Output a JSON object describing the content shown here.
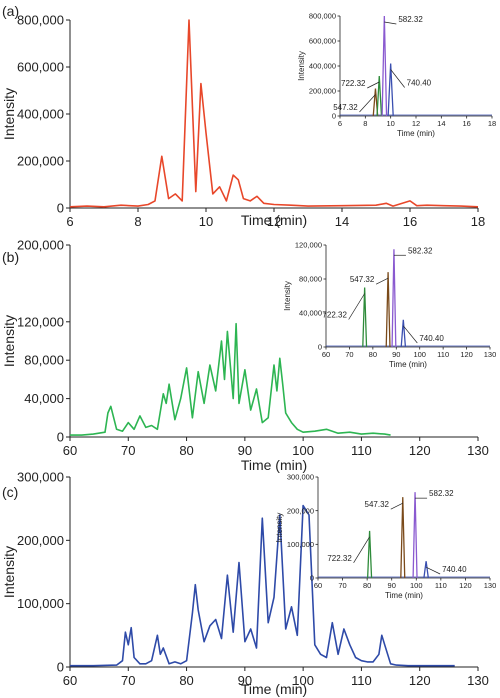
{
  "chart_data": [
    {
      "panel_label": "(a)",
      "type": "line",
      "xlabel": "Time (min)",
      "ylabel": "Intensity",
      "xlim": [
        6,
        18
      ],
      "ylim": [
        0,
        800000
      ],
      "xticks": [
        "6",
        "8",
        "10",
        "12",
        "14",
        "16",
        "18"
      ],
      "yticks": [
        "0",
        "200,000",
        "400,000",
        "600,000",
        "800,000"
      ],
      "series": [
        {
          "color": "#e8472a",
          "x": [
            6.0,
            6.5,
            7.0,
            7.5,
            8.0,
            8.3,
            8.5,
            8.7,
            8.9,
            9.1,
            9.3,
            9.5,
            9.7,
            9.85,
            10.0,
            10.2,
            10.4,
            10.6,
            10.8,
            10.95,
            11.1,
            11.3,
            11.5,
            11.7,
            12.0,
            12.5,
            13.0,
            14.0,
            15.0,
            15.3,
            15.5,
            16.0,
            16.2,
            16.5,
            17.0,
            17.5,
            18.0
          ],
          "y": [
            5000,
            8000,
            5000,
            12000,
            8000,
            15000,
            30000,
            220000,
            40000,
            60000,
            30000,
            800000,
            70000,
            530000,
            320000,
            60000,
            90000,
            30000,
            140000,
            120000,
            40000,
            30000,
            50000,
            20000,
            15000,
            12000,
            8000,
            10000,
            12000,
            20000,
            8000,
            30000,
            10000,
            12000,
            10000,
            8000,
            5000
          ]
        }
      ],
      "inset": {
        "xlabel": "Time (min)",
        "ylabel": "Intensity",
        "xlim": [
          6,
          18
        ],
        "ylim": [
          0,
          800000
        ],
        "xticks": [
          "6",
          "8",
          "10",
          "12",
          "14",
          "16",
          "18"
        ],
        "yticks": [
          "0",
          "200,000",
          "400,000",
          "600,000",
          "800,000"
        ],
        "peaks": [
          {
            "label": "547.32",
            "x": 8.8,
            "y": 220000,
            "width": 0.35,
            "color": "#7a4a1a"
          },
          {
            "label": "722.32",
            "x": 9.1,
            "y": 320000,
            "width": 0.35,
            "color": "#2e8b3a"
          },
          {
            "label": "582.32",
            "x": 9.5,
            "y": 800000,
            "width": 0.35,
            "color": "#8a5ad0"
          },
          {
            "label": "740.40",
            "x": 10.0,
            "y": 420000,
            "width": 0.4,
            "color": "#3a4fb0"
          }
        ]
      }
    },
    {
      "panel_label": "(b)",
      "type": "line",
      "xlabel": "Time (min)",
      "ylabel": "Intensity",
      "xlim": [
        60,
        130
      ],
      "ylim": [
        0,
        200000
      ],
      "xticks": [
        "60",
        "70",
        "80",
        "90",
        "100",
        "110",
        "120",
        "130"
      ],
      "yticks": [
        "0",
        "40,000",
        "80,000",
        "120,000",
        "200,000"
      ],
      "series": [
        {
          "color": "#2db552",
          "x": [
            60,
            62,
            64,
            66,
            66.5,
            67,
            67.5,
            68,
            69,
            70,
            71,
            72,
            73,
            74,
            75,
            76,
            76.5,
            77,
            78,
            79,
            80,
            81,
            82,
            83,
            84,
            85,
            86,
            86.5,
            87,
            88,
            88.5,
            89,
            90,
            91,
            92,
            93,
            94,
            95,
            95.5,
            96,
            96.5,
            97,
            98,
            99,
            100,
            102,
            104,
            106,
            108,
            110,
            112,
            114,
            115
          ],
          "y": [
            2000,
            2000,
            3000,
            5000,
            25000,
            32000,
            20000,
            8000,
            6000,
            15000,
            8000,
            22000,
            10000,
            12000,
            8000,
            45000,
            35000,
            55000,
            18000,
            40000,
            72000,
            20000,
            68000,
            35000,
            75000,
            48000,
            100000,
            60000,
            110000,
            40000,
            118000,
            35000,
            70000,
            28000,
            50000,
            15000,
            20000,
            75000,
            48000,
            82000,
            55000,
            25000,
            15000,
            8000,
            5000,
            6000,
            8000,
            4000,
            5000,
            3000,
            4000,
            3000,
            2000
          ]
        }
      ],
      "inset": {
        "xlabel": "Time (min)",
        "ylabel": "Intensity",
        "xlim": [
          60,
          130
        ],
        "ylim": [
          0,
          120000
        ],
        "xticks": [
          "60",
          "70",
          "80",
          "90",
          "100",
          "110",
          "120",
          "130"
        ],
        "yticks": [
          "0",
          "40,000",
          "80,000",
          "120,000"
        ],
        "peaks": [
          {
            "label": "722.32",
            "x": 76.5,
            "y": 70000,
            "width": 1.6,
            "color": "#2e8b3a"
          },
          {
            "label": "547.32",
            "x": 86.5,
            "y": 88000,
            "width": 1.6,
            "color": "#7a4a1a"
          },
          {
            "label": "582.32",
            "x": 89.0,
            "y": 115000,
            "width": 1.6,
            "color": "#8a5ad0"
          },
          {
            "label": "740.40",
            "x": 93.0,
            "y": 32000,
            "width": 1.8,
            "color": "#3a4fb0"
          }
        ]
      }
    },
    {
      "panel_label": "(c)",
      "type": "line",
      "xlabel": "Time (min)",
      "ylabel": "Intensity",
      "xlim": [
        60,
        130
      ],
      "ylim": [
        0,
        300000
      ],
      "xticks": [
        "60",
        "70",
        "80",
        "90",
        "100",
        "110",
        "120",
        "130"
      ],
      "yticks": [
        "0",
        "100,000",
        "200,000",
        "300,000"
      ],
      "series": [
        {
          "color": "#2e4aa8",
          "x": [
            60,
            64,
            68,
            69,
            69.5,
            70,
            70.5,
            71,
            72,
            73,
            74,
            75,
            75.5,
            76,
            77,
            78,
            79,
            80,
            81,
            81.5,
            82,
            83,
            84,
            85,
            86,
            87,
            88,
            89,
            90,
            91,
            92,
            93,
            94,
            95,
            96,
            97,
            98,
            99,
            100,
            101,
            102,
            103,
            104,
            105,
            106,
            107,
            108,
            109,
            110,
            111,
            112,
            113,
            113.5,
            114,
            115,
            116,
            118,
            120,
            124,
            126
          ],
          "y": [
            2000,
            2000,
            3000,
            10000,
            55000,
            35000,
            62000,
            15000,
            5000,
            5000,
            10000,
            50000,
            20000,
            30000,
            5000,
            8000,
            5000,
            10000,
            85000,
            130000,
            90000,
            40000,
            65000,
            75000,
            45000,
            145000,
            55000,
            165000,
            40000,
            60000,
            30000,
            235000,
            70000,
            110000,
            240000,
            60000,
            95000,
            50000,
            255000,
            240000,
            35000,
            20000,
            15000,
            70000,
            20000,
            60000,
            35000,
            15000,
            10000,
            8000,
            8000,
            20000,
            50000,
            35000,
            5000,
            3000,
            2000,
            2000,
            2000,
            2000
          ]
        }
      ],
      "inset": {
        "xlabel": "Time (min)",
        "ylabel": "Intensity",
        "xlim": [
          60,
          130
        ],
        "ylim": [
          0,
          300000
        ],
        "xticks": [
          "60",
          "70",
          "80",
          "90",
          "100",
          "110",
          "120",
          "130"
        ],
        "yticks": [
          "0",
          "100,000",
          "200,000",
          "300,000"
        ],
        "peaks": [
          {
            "label": "722.32",
            "x": 81.0,
            "y": 140000,
            "width": 1.6,
            "color": "#2e8b3a"
          },
          {
            "label": "547.32",
            "x": 94.5,
            "y": 240000,
            "width": 1.6,
            "color": "#7a4a1a"
          },
          {
            "label": "582.32",
            "x": 99.5,
            "y": 255000,
            "width": 1.6,
            "color": "#8a5ad0"
          },
          {
            "label": "740.40",
            "x": 104.0,
            "y": 50000,
            "width": 1.8,
            "color": "#3a4fb0"
          }
        ]
      }
    }
  ]
}
